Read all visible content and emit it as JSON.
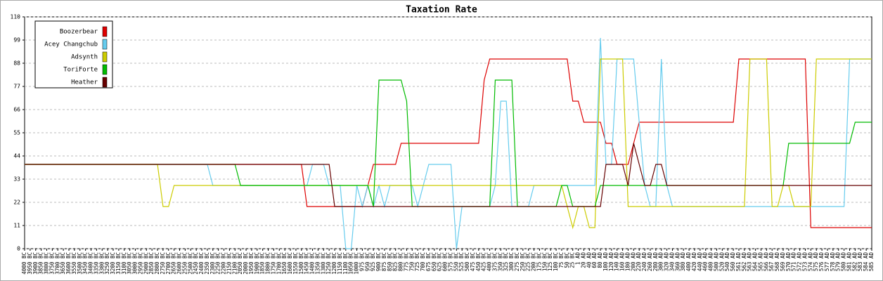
{
  "chart_data": {
    "type": "line",
    "title": "Taxation Rate",
    "categories": [
      "4000 BC",
      "3950 BC",
      "3900 BC",
      "3850 BC",
      "3800 BC",
      "3750 BC",
      "3700 BC",
      "3650 BC",
      "3600 BC",
      "3550 BC",
      "3500 BC",
      "3450 BC",
      "3400 BC",
      "3350 BC",
      "3300 BC",
      "3250 BC",
      "3200 BC",
      "3150 BC",
      "3100 BC",
      "3050 BC",
      "3000 BC",
      "2950 BC",
      "2900 BC",
      "2850 BC",
      "2800 BC",
      "2750 BC",
      "2700 BC",
      "2650 BC",
      "2600 BC",
      "2550 BC",
      "2500 BC",
      "2450 BC",
      "2400 BC",
      "2350 BC",
      "2300 BC",
      "2250 BC",
      "2200 BC",
      "2150 BC",
      "2100 BC",
      "2050 BC",
      "2000 BC",
      "1950 BC",
      "1900 BC",
      "1850 BC",
      "1800 BC",
      "1750 BC",
      "1700 BC",
      "1650 BC",
      "1600 BC",
      "1550 BC",
      "1500 BC",
      "1450 BC",
      "1400 BC",
      "1350 BC",
      "1300 BC",
      "1250 BC",
      "1200 BC",
      "1150 BC",
      "1100 BC",
      "1050 BC",
      "1000 BC",
      "975 BC",
      "950 BC",
      "925 BC",
      "900 BC",
      "875 BC",
      "850 BC",
      "825 BC",
      "800 BC",
      "775 BC",
      "750 BC",
      "725 BC",
      "700 BC",
      "675 BC",
      "650 BC",
      "625 BC",
      "600 BC",
      "575 BC",
      "550 BC",
      "525 BC",
      "500 BC",
      "475 BC",
      "450 BC",
      "425 BC",
      "400 BC",
      "375 BC",
      "350 BC",
      "325 BC",
      "300 BC",
      "275 BC",
      "250 BC",
      "225 BC",
      "200 BC",
      "175 BC",
      "150 BC",
      "125 BC",
      "100 BC",
      "75 BC",
      "50 BC",
      "25 BC",
      "1 AD",
      "20 AD",
      "40 AD",
      "60 AD",
      "80 AD",
      "100 AD",
      "120 AD",
      "140 AD",
      "160 AD",
      "180 AD",
      "200 AD",
      "220 AD",
      "240 AD",
      "260 AD",
      "280 AD",
      "300 AD",
      "320 AD",
      "340 AD",
      "360 AD",
      "380 AD",
      "400 AD",
      "420 AD",
      "440 AD",
      "460 AD",
      "480 AD",
      "500 AD",
      "520 AD",
      "540 AD",
      "560 AD",
      "561 AD",
      "562 AD",
      "563 AD",
      "564 AD",
      "565 AD",
      "566 AD",
      "567 AD",
      "568 AD",
      "569 AD",
      "570 AD",
      "571 AD",
      "572 AD",
      "573 AD",
      "574 AD",
      "575 AD",
      "576 AD",
      "577 AD",
      "578 AD",
      "579 AD",
      "580 AD",
      "581 AD",
      "582 AD",
      "583 AD",
      "584 AD",
      "585 AD"
    ],
    "series": [
      {
        "name": "Boozerbear",
        "color": "#dd0000",
        "values": [
          40,
          40,
          40,
          40,
          40,
          40,
          40,
          40,
          40,
          40,
          40,
          40,
          40,
          40,
          40,
          40,
          40,
          40,
          40,
          40,
          40,
          40,
          40,
          40,
          40,
          40,
          40,
          40,
          40,
          40,
          40,
          40,
          40,
          40,
          40,
          40,
          40,
          40,
          40,
          40,
          40,
          40,
          40,
          40,
          40,
          40,
          40,
          40,
          40,
          40,
          40,
          20,
          20,
          20,
          20,
          20,
          20,
          20,
          20,
          20,
          20,
          20,
          30,
          40,
          40,
          40,
          40,
          40,
          50,
          50,
          50,
          50,
          50,
          50,
          50,
          50,
          50,
          50,
          50,
          50,
          50,
          50,
          50,
          80,
          90,
          90,
          90,
          90,
          90,
          90,
          90,
          90,
          90,
          90,
          90,
          90,
          90,
          90,
          90,
          70,
          70,
          60,
          60,
          60,
          60,
          50,
          50,
          40,
          40,
          40,
          50,
          60,
          60,
          60,
          60,
          60,
          60,
          60,
          60,
          60,
          60,
          60,
          60,
          60,
          60,
          60,
          60,
          60,
          60,
          90,
          90,
          90,
          90,
          90,
          90,
          90,
          90,
          90,
          90,
          90,
          90,
          90,
          10,
          10,
          10,
          10,
          10,
          10,
          10,
          10,
          10,
          10,
          10,
          10
        ]
      },
      {
        "name": "Acey Changchub",
        "color": "#66ccee",
        "values": [
          40,
          40,
          40,
          40,
          40,
          40,
          40,
          40,
          40,
          40,
          40,
          40,
          40,
          40,
          40,
          40,
          40,
          40,
          40,
          40,
          40,
          40,
          40,
          40,
          40,
          40,
          40,
          40,
          40,
          40,
          40,
          40,
          40,
          40,
          30,
          30,
          30,
          30,
          30,
          30,
          30,
          30,
          30,
          30,
          30,
          30,
          30,
          30,
          30,
          30,
          30,
          30,
          40,
          40,
          40,
          30,
          30,
          30,
          0,
          0,
          30,
          20,
          30,
          20,
          30,
          20,
          30,
          30,
          30,
          30,
          30,
          20,
          30,
          40,
          40,
          40,
          40,
          40,
          0,
          20,
          20,
          20,
          20,
          20,
          20,
          30,
          70,
          70,
          20,
          20,
          20,
          20,
          30,
          30,
          30,
          30,
          30,
          30,
          30,
          30,
          30,
          30,
          30,
          30,
          100,
          40,
          40,
          90,
          90,
          90,
          90,
          60,
          30,
          20,
          20,
          90,
          30,
          20,
          20,
          20,
          20,
          20,
          20,
          20,
          20,
          20,
          20,
          20,
          20,
          20,
          20,
          20,
          20,
          20,
          20,
          20,
          20,
          20,
          20,
          20,
          20,
          20,
          20,
          20,
          20,
          20,
          20,
          20,
          20,
          90,
          90,
          90,
          90,
          90
        ]
      },
      {
        "name": "Adsynth",
        "color": "#cccc00",
        "values": [
          40,
          40,
          40,
          40,
          40,
          40,
          40,
          40,
          40,
          40,
          40,
          40,
          40,
          40,
          40,
          40,
          40,
          40,
          40,
          40,
          40,
          40,
          40,
          40,
          40,
          20,
          20,
          30,
          30,
          30,
          30,
          30,
          30,
          30,
          30,
          30,
          30,
          30,
          30,
          30,
          30,
          30,
          30,
          30,
          30,
          30,
          30,
          30,
          30,
          30,
          30,
          30,
          30,
          30,
          30,
          30,
          30,
          30,
          30,
          30,
          30,
          30,
          30,
          30,
          30,
          30,
          30,
          30,
          30,
          30,
          30,
          30,
          30,
          30,
          30,
          30,
          30,
          30,
          30,
          30,
          30,
          30,
          30,
          30,
          30,
          30,
          30,
          30,
          30,
          30,
          30,
          30,
          30,
          30,
          30,
          30,
          30,
          30,
          20,
          10,
          20,
          20,
          10,
          10,
          90,
          90,
          90,
          90,
          90,
          20,
          20,
          20,
          20,
          20,
          20,
          20,
          20,
          20,
          20,
          20,
          20,
          20,
          20,
          20,
          20,
          20,
          20,
          20,
          20,
          20,
          20,
          90,
          90,
          90,
          90,
          20,
          20,
          30,
          30,
          20,
          20,
          20,
          20,
          90,
          90,
          90,
          90,
          90,
          90,
          90,
          90,
          90,
          90,
          90
        ]
      },
      {
        "name": "ToriForte",
        "color": "#00bb00",
        "values": [
          40,
          40,
          40,
          40,
          40,
          40,
          40,
          40,
          40,
          40,
          40,
          40,
          40,
          40,
          40,
          40,
          40,
          40,
          40,
          40,
          40,
          40,
          40,
          40,
          40,
          40,
          40,
          40,
          40,
          40,
          40,
          40,
          40,
          40,
          40,
          40,
          40,
          40,
          40,
          30,
          30,
          30,
          30,
          30,
          30,
          30,
          30,
          30,
          30,
          30,
          30,
          30,
          30,
          30,
          30,
          30,
          30,
          30,
          30,
          30,
          30,
          30,
          30,
          20,
          80,
          80,
          80,
          80,
          80,
          70,
          20,
          20,
          20,
          20,
          20,
          20,
          20,
          20,
          20,
          20,
          20,
          20,
          20,
          20,
          20,
          80,
          80,
          80,
          80,
          20,
          20,
          20,
          20,
          20,
          20,
          20,
          20,
          30,
          30,
          20,
          20,
          20,
          20,
          20,
          30,
          30,
          30,
          30,
          30,
          30,
          30,
          30,
          30,
          30,
          30,
          30,
          30,
          30,
          30,
          30,
          30,
          30,
          30,
          30,
          30,
          30,
          30,
          30,
          30,
          30,
          30,
          30,
          30,
          30,
          30,
          30,
          30,
          30,
          50,
          50,
          50,
          50,
          50,
          50,
          50,
          50,
          50,
          50,
          50,
          50,
          60,
          60,
          60,
          60
        ]
      },
      {
        "name": "Heather",
        "color": "#660000",
        "values": [
          40,
          40,
          40,
          40,
          40,
          40,
          40,
          40,
          40,
          40,
          40,
          40,
          40,
          40,
          40,
          40,
          40,
          40,
          40,
          40,
          40,
          40,
          40,
          40,
          40,
          40,
          40,
          40,
          40,
          40,
          40,
          40,
          40,
          40,
          40,
          40,
          40,
          40,
          40,
          40,
          40,
          40,
          40,
          40,
          40,
          40,
          40,
          40,
          40,
          40,
          40,
          40,
          40,
          40,
          40,
          40,
          20,
          20,
          20,
          20,
          20,
          20,
          20,
          20,
          20,
          20,
          20,
          20,
          20,
          20,
          20,
          20,
          20,
          20,
          20,
          20,
          20,
          20,
          20,
          20,
          20,
          20,
          20,
          20,
          20,
          20,
          20,
          20,
          20,
          20,
          20,
          20,
          20,
          20,
          20,
          20,
          20,
          20,
          20,
          20,
          20,
          20,
          20,
          20,
          20,
          40,
          40,
          40,
          40,
          30,
          50,
          40,
          30,
          30,
          40,
          40,
          30,
          30,
          30,
          30,
          30,
          30,
          30,
          30,
          30,
          30,
          30,
          30,
          30,
          30,
          30,
          30,
          30,
          30,
          30,
          30,
          30,
          30,
          30,
          30,
          30,
          30,
          30,
          30,
          30,
          30,
          30,
          30,
          30,
          30,
          30,
          30,
          30,
          30
        ]
      }
    ],
    "ylim": [
      0,
      110
    ],
    "yticks": [
      0,
      11,
      22,
      33,
      44,
      55,
      66,
      77,
      88,
      99,
      110
    ],
    "grid": true,
    "legend": "top-left"
  }
}
